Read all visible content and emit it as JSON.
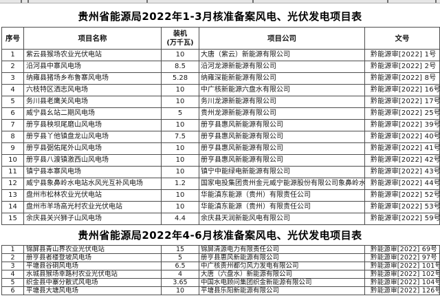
{
  "table1": {
    "title": "贵州省能源局2022年1-3月核准备案风电、光伏发电项目表",
    "header": {
      "no": "序号",
      "name": "项目名称",
      "cap_line1": "装机",
      "cap_line2": "(万千瓦)",
      "company": "项目公司",
      "doc": "文号"
    },
    "rows": [
      {
        "no": "1",
        "name": "紫云县猴场农业光伏电站",
        "cap": "10",
        "company": "大唐（紫云）新能源有限公司",
        "doc": "黔能源审[2022] 1号"
      },
      {
        "no": "2",
        "name": "沿河县中寨风电场",
        "cap": "8.5",
        "company": "沿河龙源新能源有限公司",
        "doc": "黔能源审[2022] 2号"
      },
      {
        "no": "3",
        "name": "纳雍县猪场乡布鲁寨风电场",
        "cap": "5.28",
        "company": "纳雍深能新能源有限公司",
        "doc": "黔能源审[2022] 8号"
      },
      {
        "no": "4",
        "name": "六枝特区洒志风电场",
        "cap": "10",
        "company": "中广核新能源六盘水有限公司",
        "doc": "黔能源审[2022] 16号"
      },
      {
        "no": "5",
        "name": "务川县老鹰关风电场",
        "cap": "10",
        "company": "务川龙源新能源有限公司",
        "doc": "黔能源审[2022] 17号"
      },
      {
        "no": "6",
        "name": "威宁县幺站二期风电场",
        "cap": "5",
        "company": "贵州龙源新能源有限公司",
        "doc": "黔能源审[2022] 25号"
      },
      {
        "no": "7",
        "name": "册亨县秧坝尾磨山风电场",
        "cap": "10",
        "company": "册亨县惠风新能源有限公司",
        "doc": "黔能源审[2022] 39号"
      },
      {
        "no": "8",
        "name": "册亨县丫他镇盘龙山风电场",
        "cap": "7.5",
        "company": "册亨县惠风新能源有限公司",
        "doc": "黔能源审[2022] 40号"
      },
      {
        "no": "9",
        "name": "册亨县弼佑尾外山风电场",
        "cap": "10",
        "company": "册亨县惠风新能源有限公司",
        "doc": "黔能源审[2022] 41号"
      },
      {
        "no": "10",
        "name": "册亨县八渡镇激西山风电场",
        "cap": "10",
        "company": "册亨县惠风新能源有限公司",
        "doc": "黔能源审[2022] 42号"
      },
      {
        "no": "11",
        "name": "镇宁县本寨风电场",
        "cap": "10",
        "company": "镇宁中能绿电新能源有限公司",
        "doc": "黔能源审[2022] 43号"
      },
      {
        "no": "12",
        "name": "威宁县象鼻岭水电站水风光互补风电场",
        "cap": "1.2",
        "company": "国家电投集团贵州金元威宁能源股份有限公司象鼻岭水电站",
        "doc": "黔能源审[2022] 44号"
      },
      {
        "no": "13",
        "name": "盘州市松林农业光伏电站",
        "cap": "10",
        "company": "华能滇东能源（贵州）有限责任公司",
        "doc": "黔能源审[2022] 52号"
      },
      {
        "no": "14",
        "name": "盘州市羊场高光村农业光伏电站",
        "cap": "10",
        "company": "华能滇东能源（贵州）有限责任公司",
        "doc": "黔能源审[2022] 53号"
      },
      {
        "no": "15",
        "name": "余庆县关兴狮子山风电场",
        "cap": "4.4",
        "company": "余庆县天润新能风电有限公司",
        "doc": "黔能源审[2022] 59号"
      }
    ]
  },
  "table2": {
    "title": "贵州省能源局2022年4-6月核准备案风电、光伏发电项目表",
    "rows": [
      {
        "no": "1",
        "name": "锦屏县青山界农业光伏电站",
        "cap": "15",
        "company": "锦屏清源电力有限责任公司",
        "doc": "黔能源审[2022] 69号"
      },
      {
        "no": "2",
        "name": "册亨县者楼登坡风电场",
        "cap": "5",
        "company": "册亨县惠风新能源有限公司",
        "doc": "黔能源审[2022] 97号"
      },
      {
        "no": "3",
        "name": "平塘县谷硐风电场",
        "cap": "6.5",
        "company": "中广核贵州都匀风力发电有限公司",
        "doc": "黔能源审[2022] 101号"
      },
      {
        "no": "4",
        "name": "水城县猴场幸路村农业光伏电站",
        "cap": "4",
        "company": "大唐（六盘水）新能源有限公司",
        "doc": "黔能源审[2022] 102号"
      },
      {
        "no": "5",
        "name": "织金县中寨分散式风电场",
        "cap": "3.65",
        "company": "中国水电顾问集团织金新能源有限公司",
        "doc": "黔能源审[2022] 104号"
      },
      {
        "no": "6",
        "name": "平塘县大塘风电场",
        "cap": "10",
        "company": "平塘县乐阳新能源有限公司",
        "doc": "黔能源审[2022] 126号"
      }
    ]
  }
}
